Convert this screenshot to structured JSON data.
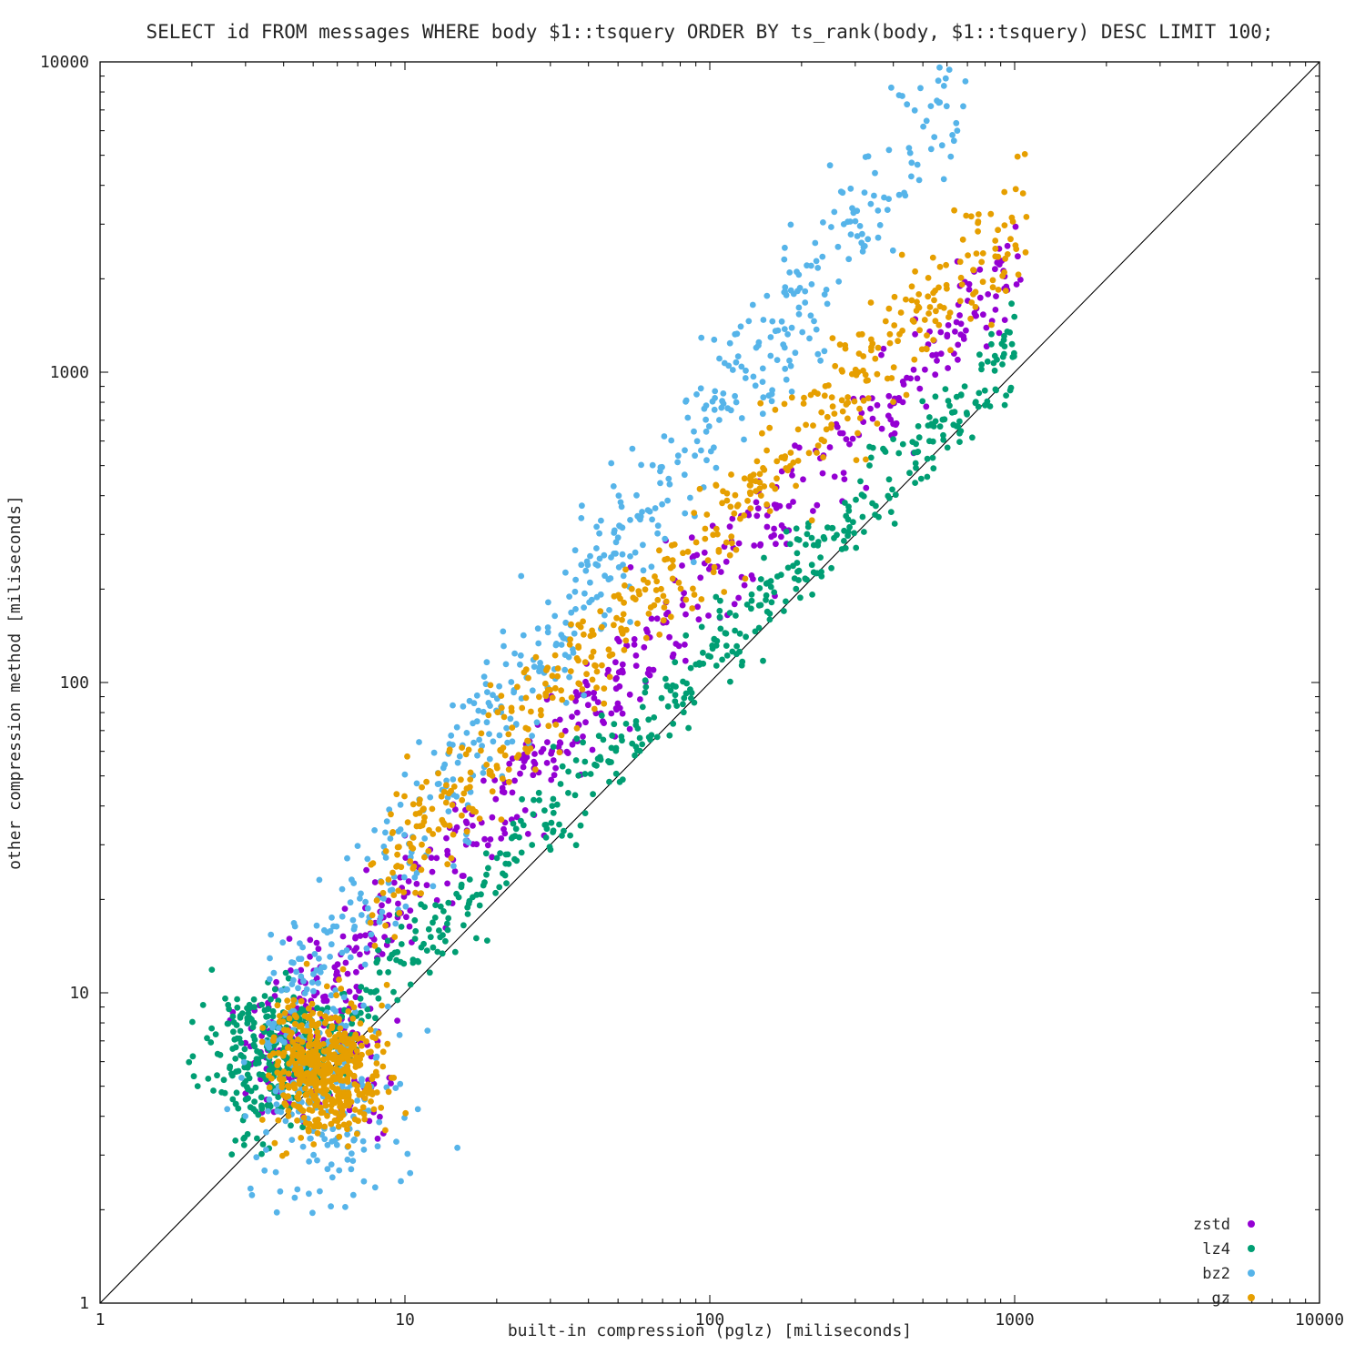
{
  "chart_data": {
    "type": "scatter",
    "title": "SELECT id FROM messages WHERE body $1::tsquery ORDER BY ts_rank(body, $1::tsquery) DESC LIMIT 100;",
    "xlabel": "built-in compression (pglz) [miliseconds]",
    "ylabel": "other compression method [miliseconds]",
    "xscale": "log",
    "yscale": "log",
    "xlim": [
      1,
      10000
    ],
    "ylim": [
      1,
      10000
    ],
    "xticks": [
      1,
      10,
      100,
      1000,
      10000
    ],
    "yticks": [
      1,
      10,
      100,
      1000,
      10000
    ],
    "grid": false,
    "legend_position": "bottom-right",
    "reference_line": {
      "description": "y = x diagonal",
      "from": [
        1,
        1
      ],
      "to": [
        10000,
        10000
      ],
      "color": "#000000"
    },
    "series": [
      {
        "name": "zstd",
        "color": "#9400d3",
        "trend": {
          "count": 500,
          "xlog_min": 0.45,
          "xlog_max": 3.02,
          "coef": 1.9,
          "slope": 1.02,
          "noise_dex": 0.09
        },
        "cluster": {
          "count": 130,
          "xlog_mean": 0.72,
          "xlog_sd": 0.13,
          "ylog_mean": 0.78,
          "ylog_sd": 0.12
        }
      },
      {
        "name": "lz4",
        "color": "#009e73",
        "trend": {
          "count": 560,
          "xlog_min": 0.42,
          "xlog_max": 3.0,
          "coef": 1.35,
          "slope": 0.98,
          "noise_dex": 0.07
        },
        "cluster": {
          "count": 220,
          "xlog_mean": 0.56,
          "xlog_sd": 0.12,
          "ylog_mean": 0.83,
          "ylog_sd": 0.1
        }
      },
      {
        "name": "bz2",
        "color": "#56b4e9",
        "trend": {
          "count": 560,
          "xlog_min": 0.55,
          "xlog_max": 2.85,
          "coef": 1.35,
          "slope": 1.35,
          "noise_dex": 0.12
        },
        "cluster": {
          "count": 180,
          "xlog_mean": 0.72,
          "xlog_sd": 0.14,
          "ylog_mean": 0.62,
          "ylog_sd": 0.18
        }
      },
      {
        "name": "gz",
        "color": "#e69f00",
        "trend": {
          "count": 520,
          "xlog_min": 0.88,
          "xlog_max": 3.04,
          "coef": 3.0,
          "slope": 1.0,
          "noise_dex": 0.1
        },
        "cluster": {
          "count": 480,
          "xlog_mean": 0.74,
          "xlog_sd": 0.09,
          "ylog_mean": 0.76,
          "ylog_sd": 0.11
        }
      }
    ],
    "generator": {
      "seed": 1337,
      "marker_radius": 3.4
    }
  },
  "axes_text": {
    "x_tick_labels": [
      "1",
      "10",
      "100",
      "1000",
      "10000"
    ],
    "y_tick_labels": [
      "1",
      "10",
      "100",
      "1000",
      "10000"
    ]
  }
}
